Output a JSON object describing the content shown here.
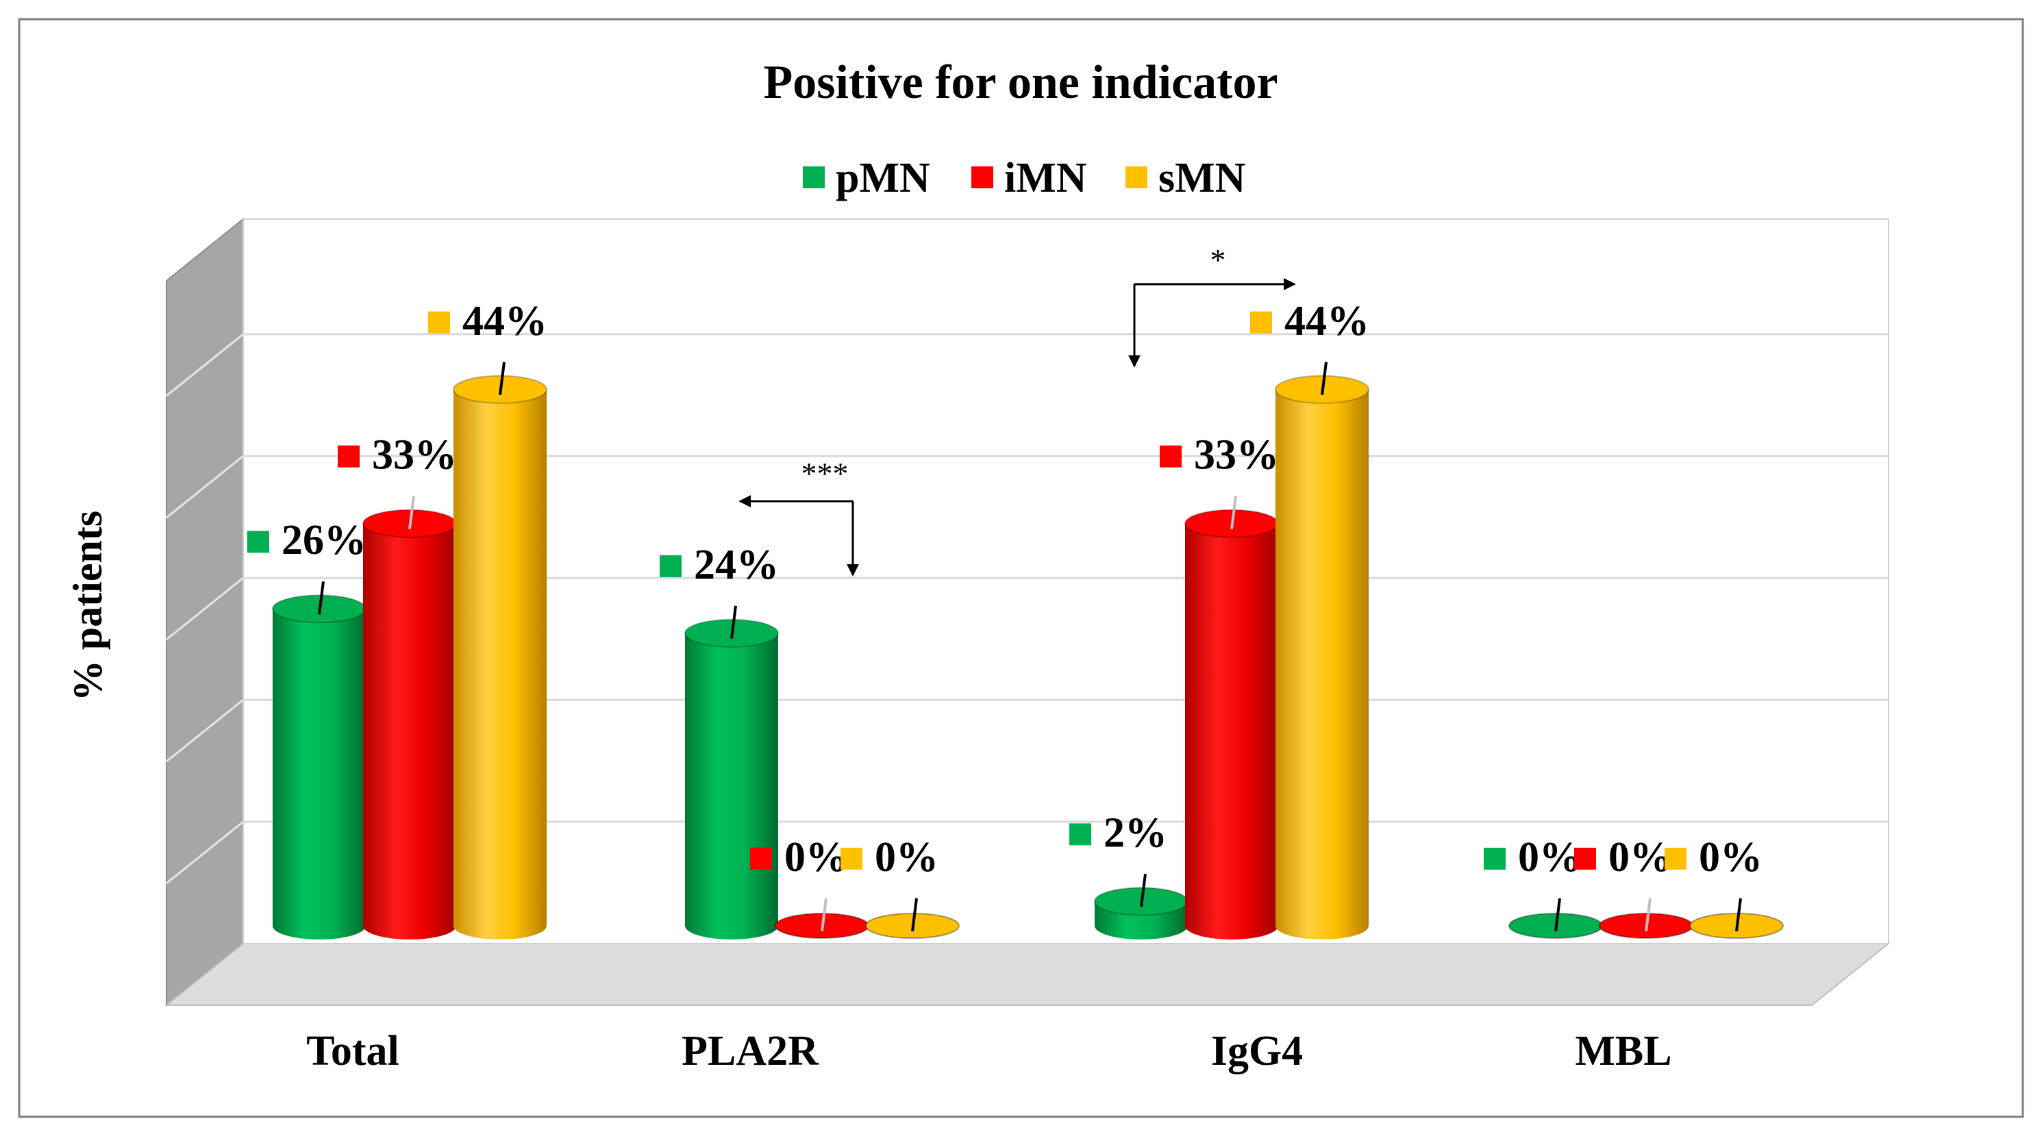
{
  "chart_data": {
    "type": "bar",
    "style": "3d-cylinder",
    "title": "Positive for one indicator",
    "xlabel": "",
    "ylabel": "% patients",
    "ylim": [
      0,
      50
    ],
    "categories": [
      "Total",
      "PLA2R",
      "IgG4",
      "MBL"
    ],
    "series": [
      {
        "name": "pMN",
        "color": "#00b050",
        "values": [
          26,
          24,
          2,
          0
        ],
        "labels": [
          "26%",
          "24%",
          "2%",
          "0%"
        ]
      },
      {
        "name": "iMN",
        "color": "#ff0000",
        "values": [
          33,
          0,
          33,
          0
        ],
        "labels": [
          "33%",
          "0%",
          "33%",
          "0%"
        ]
      },
      {
        "name": "sMN",
        "color": "#ffc000",
        "values": [
          44,
          0,
          44,
          0
        ],
        "labels": [
          "44%",
          "0%",
          "44%",
          "0%"
        ]
      }
    ],
    "annotations": [
      {
        "text": "***",
        "category": "PLA2R",
        "from_series": "iMN",
        "to_series": "pMN"
      },
      {
        "text": "*",
        "category": "IgG4",
        "from_series": "pMN",
        "to_series": "sMN"
      }
    ]
  }
}
